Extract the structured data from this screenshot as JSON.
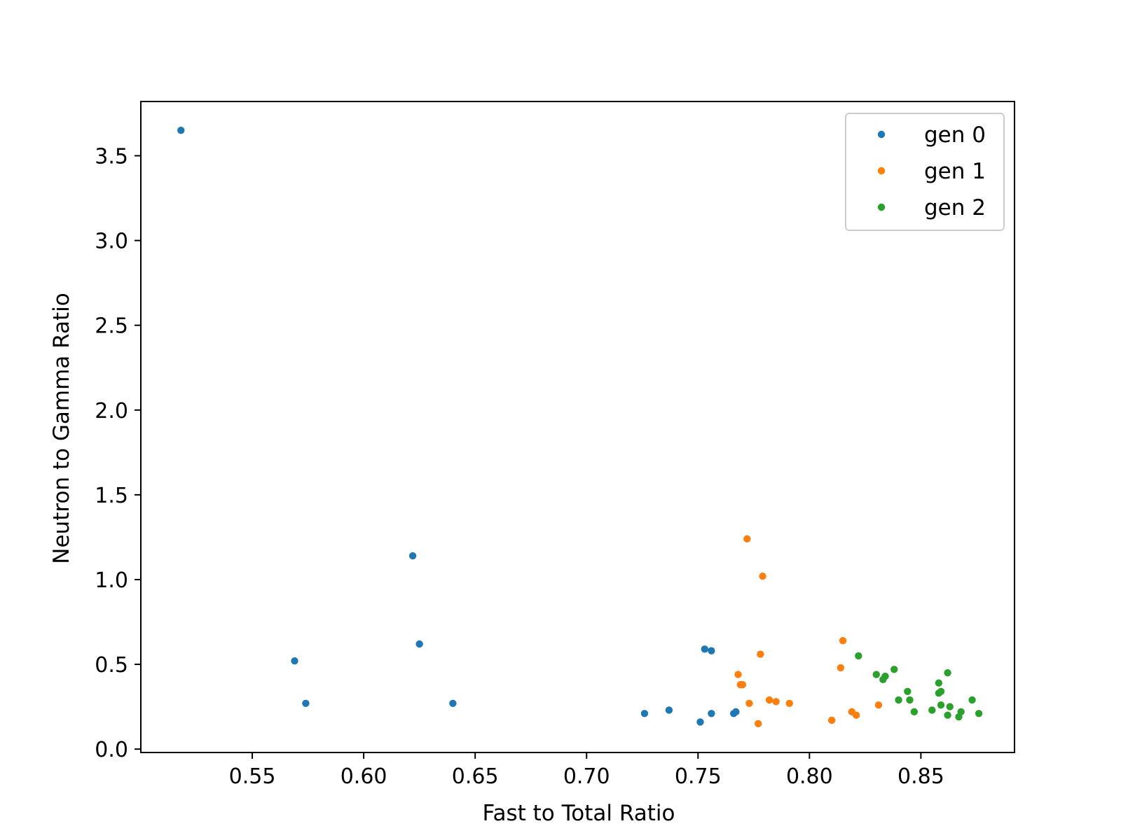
{
  "chart_data": {
    "type": "scatter",
    "title": "",
    "xlabel": "Fast to Total Ratio",
    "ylabel": "Neutron to Gamma Ratio",
    "xlim": [
      0.5,
      0.892
    ],
    "ylim": [
      -0.02,
      3.82
    ],
    "xticks": [
      0.55,
      0.6,
      0.65,
      0.7,
      0.75,
      0.8,
      0.85
    ],
    "xtick_labels": [
      "0.55",
      "0.60",
      "0.65",
      "0.70",
      "0.75",
      "0.80",
      "0.85"
    ],
    "yticks": [
      0.0,
      0.5,
      1.0,
      1.5,
      2.0,
      2.5,
      3.0,
      3.5
    ],
    "ytick_labels": [
      "0.0",
      "0.5",
      "1.0",
      "1.5",
      "2.0",
      "2.5",
      "3.0",
      "3.5"
    ],
    "grid": false,
    "legend_position": "top-right",
    "series": [
      {
        "name": "gen 0",
        "color": "#1f77b4",
        "points": [
          [
            0.518,
            3.65
          ],
          [
            0.569,
            0.52
          ],
          [
            0.574,
            0.27
          ],
          [
            0.622,
            1.14
          ],
          [
            0.625,
            0.62
          ],
          [
            0.64,
            0.27
          ],
          [
            0.726,
            0.21
          ],
          [
            0.737,
            0.23
          ],
          [
            0.751,
            0.16
          ],
          [
            0.753,
            0.59
          ],
          [
            0.756,
            0.21
          ],
          [
            0.756,
            0.58
          ],
          [
            0.766,
            0.21
          ],
          [
            0.767,
            0.22
          ]
        ]
      },
      {
        "name": "gen 1",
        "color": "#ff7f0e",
        "points": [
          [
            0.768,
            0.44
          ],
          [
            0.769,
            0.38
          ],
          [
            0.77,
            0.38
          ],
          [
            0.772,
            1.24
          ],
          [
            0.773,
            0.27
          ],
          [
            0.777,
            0.15
          ],
          [
            0.778,
            0.56
          ],
          [
            0.779,
            1.02
          ],
          [
            0.782,
            0.29
          ],
          [
            0.785,
            0.28
          ],
          [
            0.791,
            0.27
          ],
          [
            0.81,
            0.17
          ],
          [
            0.814,
            0.48
          ],
          [
            0.815,
            0.64
          ],
          [
            0.819,
            0.22
          ],
          [
            0.821,
            0.2
          ],
          [
            0.831,
            0.26
          ]
        ]
      },
      {
        "name": "gen 2",
        "color": "#2ca02c",
        "points": [
          [
            0.822,
            0.55
          ],
          [
            0.83,
            0.44
          ],
          [
            0.833,
            0.41
          ],
          [
            0.834,
            0.43
          ],
          [
            0.838,
            0.47
          ],
          [
            0.84,
            0.29
          ],
          [
            0.844,
            0.34
          ],
          [
            0.845,
            0.29
          ],
          [
            0.847,
            0.22
          ],
          [
            0.855,
            0.23
          ],
          [
            0.858,
            0.33
          ],
          [
            0.858,
            0.39
          ],
          [
            0.859,
            0.34
          ],
          [
            0.859,
            0.26
          ],
          [
            0.862,
            0.45
          ],
          [
            0.862,
            0.2
          ],
          [
            0.863,
            0.25
          ],
          [
            0.867,
            0.19
          ],
          [
            0.868,
            0.22
          ],
          [
            0.873,
            0.29
          ],
          [
            0.876,
            0.21
          ]
        ]
      }
    ]
  }
}
